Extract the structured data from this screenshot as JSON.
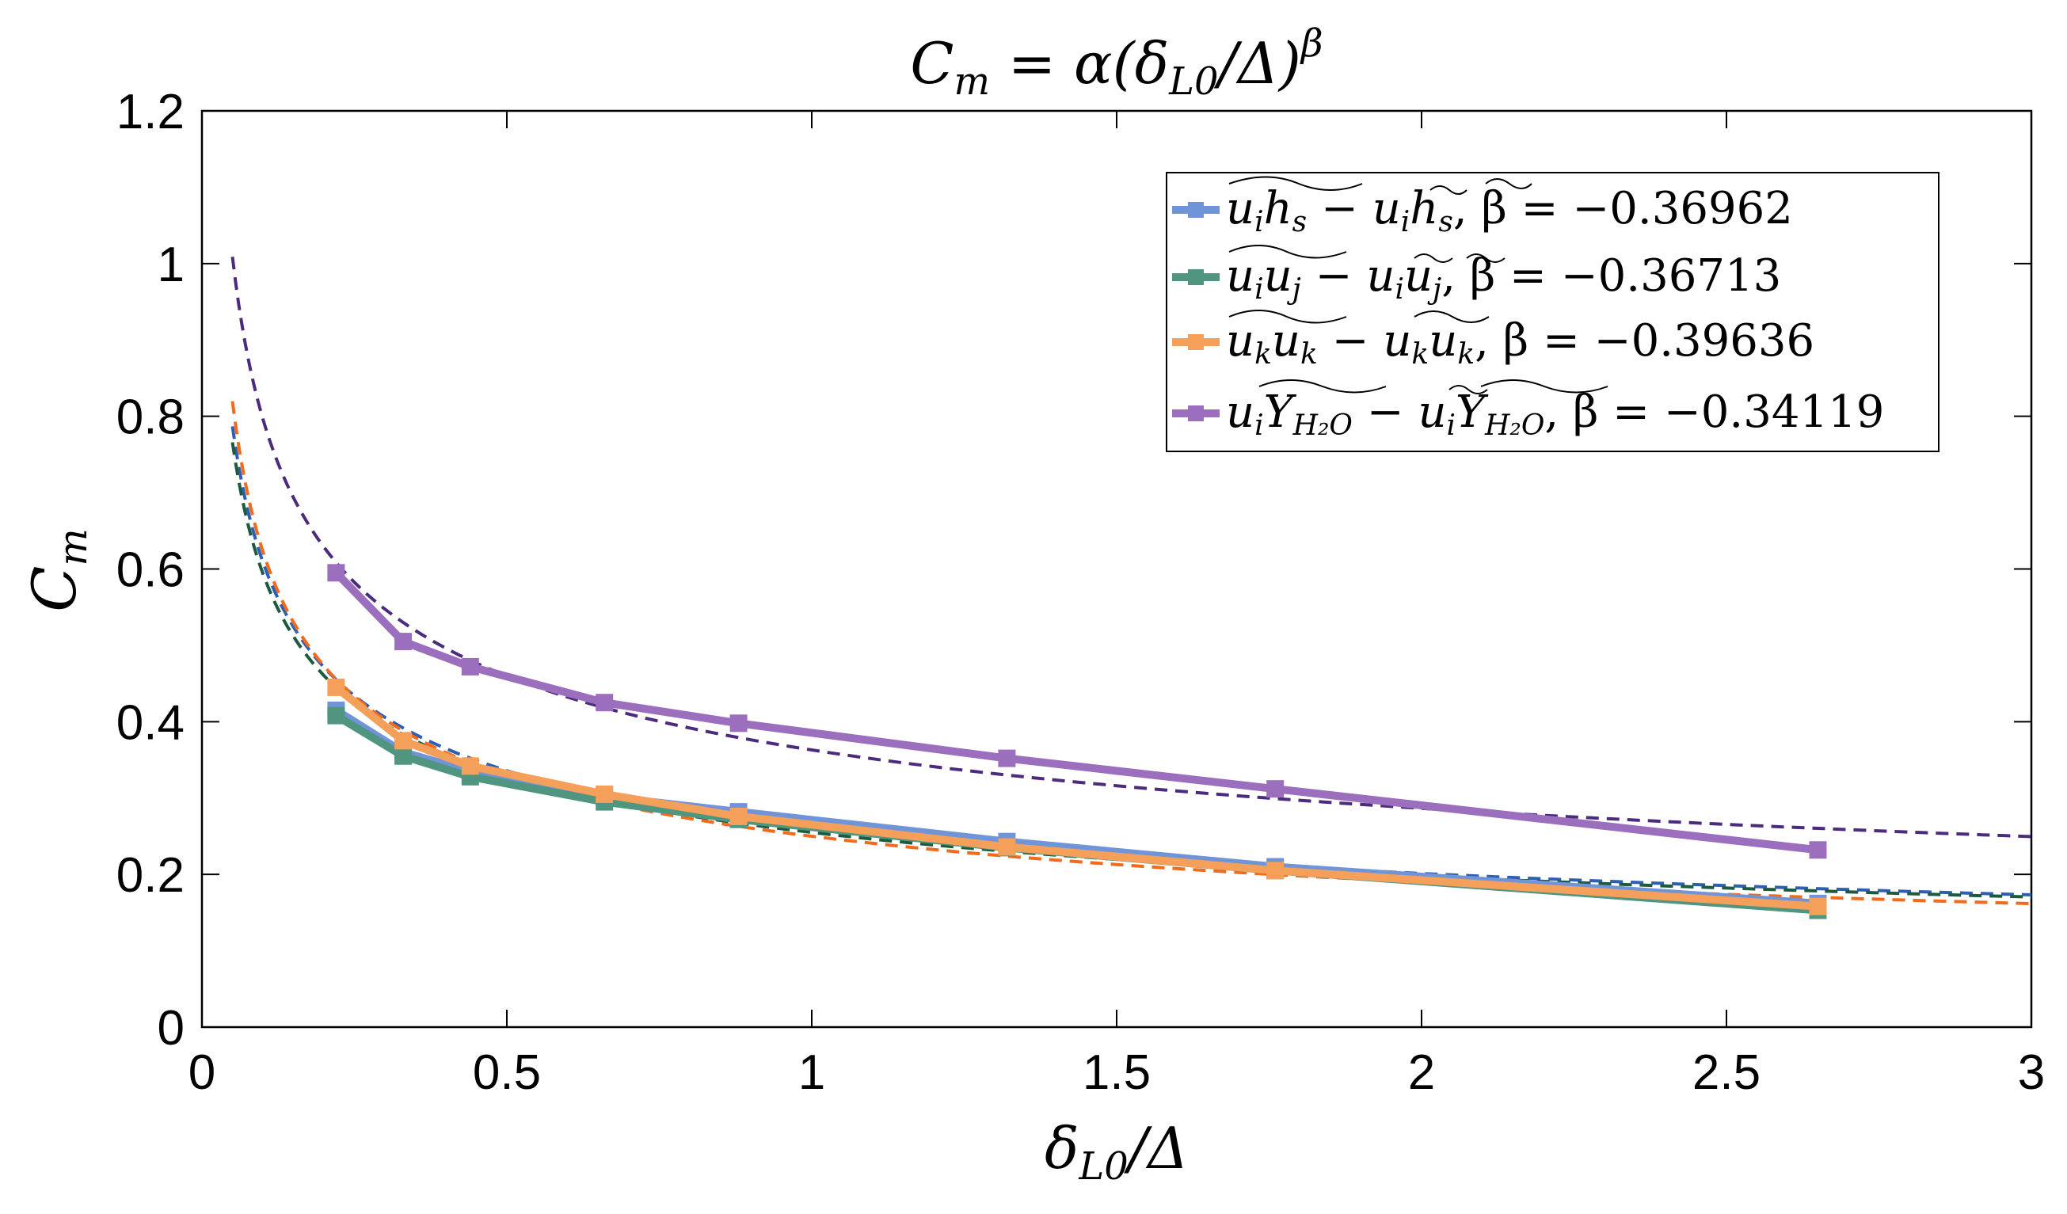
{
  "chart_data": {
    "type": "line",
    "title": "C_m = α(δ_L0/Δ)^β",
    "title_parts": {
      "lhs": "C",
      "lhs_sub": "m",
      "eq": " = α(δ",
      "sub": "L0",
      "mid": "/Δ)",
      "sup": "β"
    },
    "xlabel_parts": {
      "base": "δ",
      "sub": "L0",
      "rest": "/Δ"
    },
    "ylabel_parts": {
      "base": "C",
      "sub": "m"
    },
    "xlim": [
      0,
      3
    ],
    "ylim": [
      0,
      1.2
    ],
    "x_ticks": [
      0,
      0.5,
      1,
      1.5,
      2,
      2.5,
      3
    ],
    "x_tick_labels": [
      "0",
      "0.5",
      "1",
      "1.5",
      "2",
      "2.5",
      "3"
    ],
    "y_ticks": [
      0,
      0.2,
      0.4,
      0.6,
      0.8,
      1,
      1.2
    ],
    "y_tick_labels": [
      "0",
      "0.2",
      "0.4",
      "0.6",
      "0.8",
      "1",
      "1.2"
    ],
    "grid": false,
    "legend_position": "top-right",
    "x": [
      0.22,
      0.33,
      0.44,
      0.66,
      0.88,
      1.32,
      1.76,
      2.65
    ],
    "series": [
      {
        "name": "u_i h_s − ũ_i h̃_s",
        "legend_text": "ũᵢh̃ₛ − ũᵢh̃ₛ, β = −0.36962",
        "beta_label": "β = −0.36962",
        "legend_parts": {
          "a": "u",
          "a_sub": "i",
          "b": "h",
          "b_sub": "s",
          "c": "u",
          "c_sub": "i",
          "d": "h",
          "d_sub": "s"
        },
        "color": "#6f95d8",
        "fit_color": "#2f5fb3",
        "values": [
          0.415,
          0.36,
          0.335,
          0.302,
          0.282,
          0.243,
          0.21,
          0.162
        ],
        "fit": {
          "alpha": 0.26,
          "beta": -0.36962
        }
      },
      {
        "name": "u_i u_j − ũ_i ũ_j",
        "legend_text": "ũᵢũⱼ − ũᵢũⱼ, β = −0.36713",
        "beta_label": "β = −0.36713",
        "legend_parts": {
          "a": "u",
          "a_sub": "i",
          "b": "u",
          "b_sub": "j",
          "c": "u",
          "c_sub": "i",
          "d": "u",
          "d_sub": "j"
        },
        "color": "#4f9580",
        "fit_color": "#1d5b3f",
        "values": [
          0.408,
          0.355,
          0.328,
          0.295,
          0.272,
          0.235,
          0.205,
          0.153
        ],
        "fit": {
          "alpha": 0.255,
          "beta": -0.36713
        }
      },
      {
        "name": "u_k u_k − ũ_k ũ_k",
        "legend_text": "ũₖuₖ − ũₖũₖ, β = −0.39636",
        "beta_label": "β = −0.39636",
        "legend_parts": {
          "a": "u",
          "a_sub": "k",
          "b": "u",
          "b_sub": "k",
          "c": "u",
          "c_sub": "k",
          "d": "u",
          "d_sub": "k"
        },
        "color": "#f5a05a",
        "fit_color": "#f26a1b",
        "values": [
          0.445,
          0.375,
          0.342,
          0.305,
          0.276,
          0.236,
          0.205,
          0.158
        ],
        "fit": {
          "alpha": 0.25,
          "beta": -0.39636
        }
      },
      {
        "name": "u_i Y_H2O − ũ_i Y_H2O",
        "legend_text": "uᵢỸ_H₂O − ũᵢỸ_H₂O, β = −0.34119",
        "beta_label": "β = −0.34119",
        "legend_parts": {
          "a": "u",
          "a_sub": "i",
          "b": "Y",
          "b_sub": "H₂O",
          "c": "u",
          "c_sub": "i",
          "d": "Y",
          "d_sub": "H₂O"
        },
        "color": "#9b6fbd",
        "fit_color": "#4a2b7e",
        "values": [
          0.595,
          0.505,
          0.472,
          0.425,
          0.398,
          0.352,
          0.312,
          0.232
        ],
        "fit": {
          "alpha": 0.363,
          "beta": -0.34119
        }
      }
    ]
  }
}
